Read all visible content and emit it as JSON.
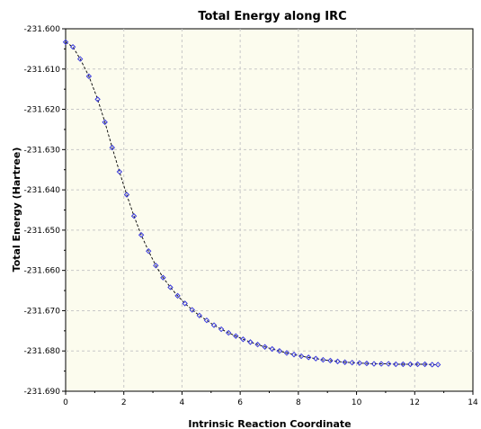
{
  "chart_data": {
    "type": "scatter",
    "title": "Total Energy along IRC",
    "xlabel": "Intrinsic Reaction Coordinate",
    "ylabel": "Total Energy (Hartree)",
    "xlim": [
      0,
      14
    ],
    "ylim": [
      -231.69,
      -231.6
    ],
    "x_ticks": [
      0,
      2,
      4,
      6,
      8,
      10,
      12,
      14
    ],
    "y_ticks": [
      -231.6,
      -231.61,
      -231.62,
      -231.63,
      -231.64,
      -231.65,
      -231.66,
      -231.67,
      -231.68,
      -231.69
    ],
    "x_tick_labels": [
      "0",
      "2",
      "4",
      "6",
      "8",
      "10",
      "12",
      "14"
    ],
    "y_tick_labels": [
      "-231.600",
      "-231.610",
      "-231.620",
      "-231.630",
      "-231.640",
      "-231.650",
      "-231.660",
      "-231.670",
      "-231.680",
      "-231.690"
    ],
    "grid": true,
    "colors": {
      "plot_background": "#fcfcee",
      "grid": "#c8c8c8",
      "point": "#3b3bdd",
      "line": "#000000"
    },
    "series": [
      {
        "x": [
          0.0,
          0.25,
          0.5,
          0.8,
          1.1,
          1.35,
          1.6,
          1.85,
          2.1,
          2.35,
          2.6,
          2.85,
          3.1,
          3.35,
          3.6,
          3.85,
          4.1,
          4.35,
          4.6,
          4.85,
          5.1,
          5.35,
          5.6,
          5.85,
          6.1,
          6.35,
          6.6,
          6.85,
          7.1,
          7.35,
          7.6,
          7.85,
          8.1,
          8.35,
          8.6,
          8.85,
          9.1,
          9.35,
          9.6,
          9.85,
          10.1,
          10.35,
          10.6,
          10.85,
          11.1,
          11.35,
          11.6,
          11.85,
          12.1,
          12.35,
          12.6,
          12.8
        ],
        "y": [
          -231.6033,
          -231.6045,
          -231.6075,
          -231.6118,
          -231.6175,
          -231.6232,
          -231.6295,
          -231.6355,
          -231.6412,
          -231.6465,
          -231.6512,
          -231.6552,
          -231.6588,
          -231.6618,
          -231.6642,
          -231.6663,
          -231.6682,
          -231.6698,
          -231.6712,
          -231.6724,
          -231.6736,
          -231.6746,
          -231.6755,
          -231.6763,
          -231.6771,
          -231.6778,
          -231.6784,
          -231.679,
          -231.6795,
          -231.68,
          -231.6805,
          -231.6809,
          -231.6813,
          -231.6816,
          -231.6819,
          -231.6822,
          -231.6824,
          -231.6826,
          -231.6828,
          -231.6829,
          -231.683,
          -231.6831,
          -231.6832,
          -231.6832,
          -231.6832,
          -231.6833,
          -231.6833,
          -231.6833,
          -231.6833,
          -231.6833,
          -231.6834,
          -231.6834
        ]
      }
    ]
  }
}
